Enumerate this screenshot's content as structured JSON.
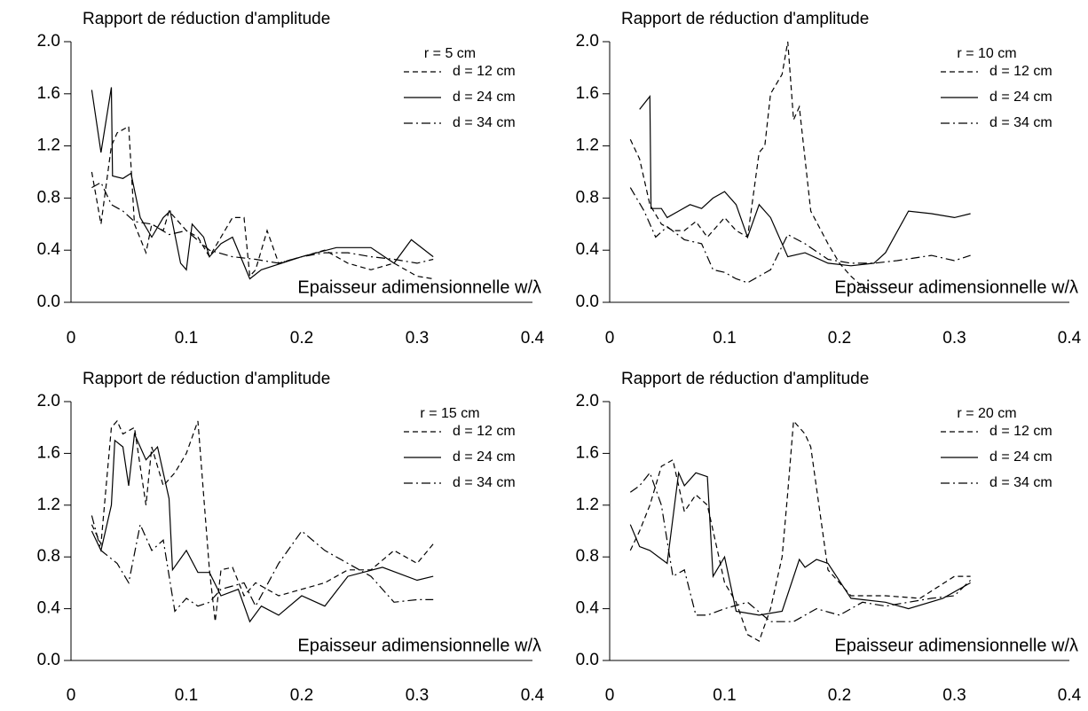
{
  "chart_data": [
    {
      "type": "line",
      "title": "Rapport de réduction d'amplitude",
      "xlabel": "Epaisseur adimensionnelle w/λ",
      "legend_title": "r = 5 cm",
      "xlim": [
        0,
        0.4
      ],
      "xticks": [
        0,
        0.1,
        0.2,
        0.3,
        0.4
      ],
      "ylim": [
        0,
        2
      ],
      "yticks": [
        {
          "value": 0,
          "label": "0.0"
        },
        {
          "value": 0.4,
          "label": "0.4"
        },
        {
          "value": 0.8,
          "label": "0.8"
        },
        {
          "value": 1.2,
          "label": "1.2"
        },
        {
          "value": 1.6,
          "label": "1.6"
        },
        {
          "value": 2,
          "label": "2.0"
        }
      ],
      "series": [
        {
          "name": "d = 12 cm",
          "color": "#000000",
          "dash": "dashed",
          "x": [
            0.018,
            0.026,
            0.035,
            0.04,
            0.05,
            0.055,
            0.065,
            0.07,
            0.08,
            0.085,
            0.09,
            0.1,
            0.11,
            0.12,
            0.13,
            0.14,
            0.15,
            0.155,
            0.16,
            0.17,
            0.18,
            0.2,
            0.22,
            0.24,
            0.26,
            0.28,
            0.3,
            0.314
          ],
          "values": [
            1.0,
            0.6,
            1.2,
            1.3,
            1.35,
            0.6,
            0.38,
            0.6,
            0.55,
            0.7,
            0.65,
            0.55,
            0.5,
            0.35,
            0.5,
            0.65,
            0.65,
            0.2,
            0.25,
            0.55,
            0.3,
            0.35,
            0.4,
            0.3,
            0.25,
            0.3,
            0.2,
            0.18
          ]
        },
        {
          "name": "d = 24 cm",
          "color": "#000000",
          "dash": "solid",
          "x": [
            0.018,
            0.026,
            0.035,
            0.036,
            0.045,
            0.052,
            0.06,
            0.07,
            0.08,
            0.086,
            0.095,
            0.1,
            0.105,
            0.115,
            0.12,
            0.13,
            0.14,
            0.155,
            0.165,
            0.2,
            0.23,
            0.26,
            0.28,
            0.295,
            0.314
          ],
          "values": [
            1.63,
            1.15,
            1.65,
            0.97,
            0.95,
            0.99,
            0.65,
            0.5,
            0.65,
            0.7,
            0.3,
            0.25,
            0.6,
            0.5,
            0.35,
            0.45,
            0.5,
            0.18,
            0.25,
            0.35,
            0.42,
            0.42,
            0.3,
            0.48,
            0.35
          ]
        },
        {
          "name": "d = 34 cm",
          "color": "#000000",
          "dash": "dashdot",
          "x": [
            0.018,
            0.026,
            0.035,
            0.045,
            0.055,
            0.07,
            0.085,
            0.1,
            0.12,
            0.14,
            0.16,
            0.18,
            0.2,
            0.22,
            0.24,
            0.26,
            0.28,
            0.3,
            0.314
          ],
          "values": [
            0.88,
            0.92,
            0.75,
            0.7,
            0.62,
            0.6,
            0.52,
            0.55,
            0.4,
            0.35,
            0.33,
            0.3,
            0.35,
            0.38,
            0.38,
            0.35,
            0.33,
            0.3,
            0.33
          ]
        }
      ]
    },
    {
      "type": "line",
      "title": "Rapport de réduction d'amplitude",
      "xlabel": "Epaisseur adimensionnelle w/λ",
      "legend_title": "r = 10 cm",
      "xlim": [
        0,
        0.4
      ],
      "xticks": [
        0,
        0.1,
        0.2,
        0.3,
        0.4
      ],
      "ylim": [
        0,
        2
      ],
      "yticks": [
        {
          "value": 0,
          "label": "0.0"
        },
        {
          "value": 0.4,
          "label": "0.4"
        },
        {
          "value": 0.8,
          "label": "0.8"
        },
        {
          "value": 1.2,
          "label": "1.2"
        },
        {
          "value": 1.6,
          "label": "1.6"
        },
        {
          "value": 2,
          "label": "2.0"
        }
      ],
      "series": [
        {
          "name": "d = 12 cm",
          "color": "#000000",
          "dash": "dashed",
          "x": [
            0.018,
            0.026,
            0.035,
            0.045,
            0.055,
            0.065,
            0.075,
            0.085,
            0.1,
            0.11,
            0.12,
            0.13,
            0.135,
            0.14,
            0.15,
            0.155,
            0.16,
            0.165,
            0.175,
            0.19,
            0.2,
            0.21,
            0.22,
            0.23
          ],
          "values": [
            1.25,
            1.1,
            0.75,
            0.6,
            0.55,
            0.55,
            0.62,
            0.5,
            0.65,
            0.55,
            0.5,
            1.15,
            1.2,
            1.6,
            1.75,
            2.0,
            1.4,
            1.5,
            0.7,
            0.45,
            0.3,
            0.2,
            0.12,
            0.08
          ]
        },
        {
          "name": "d = 24 cm",
          "color": "#000000",
          "dash": "solid",
          "x": [
            0.026,
            0.035,
            0.036,
            0.045,
            0.05,
            0.06,
            0.07,
            0.08,
            0.09,
            0.1,
            0.11,
            0.12,
            0.13,
            0.14,
            0.155,
            0.17,
            0.19,
            0.21,
            0.23,
            0.24,
            0.26,
            0.28,
            0.3,
            0.314
          ],
          "values": [
            1.48,
            1.58,
            0.72,
            0.72,
            0.65,
            0.7,
            0.75,
            0.72,
            0.8,
            0.85,
            0.75,
            0.5,
            0.75,
            0.65,
            0.35,
            0.38,
            0.3,
            0.28,
            0.3,
            0.38,
            0.7,
            0.68,
            0.65,
            0.68
          ]
        },
        {
          "name": "d = 34 cm",
          "color": "#000000",
          "dash": "dashdot",
          "x": [
            0.018,
            0.03,
            0.04,
            0.05,
            0.065,
            0.08,
            0.09,
            0.1,
            0.11,
            0.12,
            0.14,
            0.155,
            0.17,
            0.19,
            0.21,
            0.23,
            0.25,
            0.28,
            0.3,
            0.314
          ],
          "values": [
            0.88,
            0.7,
            0.5,
            0.58,
            0.48,
            0.45,
            0.25,
            0.23,
            0.18,
            0.15,
            0.25,
            0.52,
            0.45,
            0.33,
            0.3,
            0.3,
            0.32,
            0.36,
            0.32,
            0.36
          ]
        }
      ]
    },
    {
      "type": "line",
      "title": "Rapport de réduction d'amplitude",
      "xlabel": "Epaisseur adimensionnelle w/λ",
      "legend_title": "r = 15 cm",
      "xlim": [
        0,
        0.4
      ],
      "xticks": [
        0,
        0.1,
        0.2,
        0.3,
        0.4
      ],
      "ylim": [
        0,
        2
      ],
      "yticks": [
        {
          "value": 0,
          "label": "0.0"
        },
        {
          "value": 0.4,
          "label": "0.4"
        },
        {
          "value": 0.8,
          "label": "0.8"
        },
        {
          "value": 1.2,
          "label": "1.2"
        },
        {
          "value": 1.6,
          "label": "1.6"
        },
        {
          "value": 2,
          "label": "2.0"
        }
      ],
      "series": [
        {
          "name": "d = 12 cm",
          "color": "#000000",
          "dash": "dashed",
          "x": [
            0.018,
            0.026,
            0.035,
            0.04,
            0.045,
            0.055,
            0.065,
            0.07,
            0.08,
            0.09,
            0.1,
            0.11,
            0.12,
            0.125,
            0.13,
            0.14,
            0.15,
            0.16,
            0.18,
            0.2,
            0.22,
            0.24,
            0.26,
            0.28,
            0.3,
            0.314
          ],
          "values": [
            1.05,
            0.9,
            1.8,
            1.85,
            1.75,
            1.8,
            1.2,
            1.65,
            1.35,
            1.45,
            1.6,
            1.85,
            0.7,
            0.3,
            0.7,
            0.72,
            0.5,
            0.6,
            0.5,
            0.55,
            0.6,
            0.7,
            0.7,
            0.85,
            0.75,
            0.9
          ]
        },
        {
          "name": "d = 24 cm",
          "color": "#000000",
          "dash": "solid",
          "x": [
            0.018,
            0.026,
            0.035,
            0.038,
            0.045,
            0.05,
            0.055,
            0.065,
            0.075,
            0.085,
            0.088,
            0.1,
            0.11,
            0.12,
            0.13,
            0.145,
            0.155,
            0.165,
            0.18,
            0.2,
            0.22,
            0.24,
            0.27,
            0.3,
            0.314
          ],
          "values": [
            1.0,
            0.85,
            1.2,
            1.7,
            1.65,
            1.35,
            1.75,
            1.55,
            1.65,
            1.25,
            0.7,
            0.85,
            0.68,
            0.68,
            0.5,
            0.55,
            0.3,
            0.42,
            0.35,
            0.5,
            0.42,
            0.65,
            0.72,
            0.62,
            0.65
          ]
        },
        {
          "name": "d = 34 cm",
          "color": "#000000",
          "dash": "dashdot",
          "x": [
            0.018,
            0.026,
            0.04,
            0.05,
            0.06,
            0.07,
            0.08,
            0.09,
            0.1,
            0.11,
            0.12,
            0.13,
            0.15,
            0.16,
            0.18,
            0.2,
            0.22,
            0.24,
            0.26,
            0.28,
            0.3,
            0.314
          ],
          "values": [
            1.12,
            0.85,
            0.75,
            0.6,
            1.05,
            0.85,
            0.93,
            0.38,
            0.48,
            0.42,
            0.45,
            0.55,
            0.6,
            0.42,
            0.75,
            1.0,
            0.85,
            0.75,
            0.65,
            0.45,
            0.47,
            0.47
          ]
        }
      ]
    },
    {
      "type": "line",
      "title": "Rapport de réduction d'amplitude",
      "xlabel": "Epaisseur adimensionnelle w/λ",
      "legend_title": "r = 20 cm",
      "xlim": [
        0,
        0.4
      ],
      "xticks": [
        0,
        0.1,
        0.2,
        0.3,
        0.4
      ],
      "ylim": [
        0,
        2
      ],
      "yticks": [
        {
          "value": 0,
          "label": "0.0"
        },
        {
          "value": 0.4,
          "label": "0.4"
        },
        {
          "value": 0.8,
          "label": "0.8"
        },
        {
          "value": 1.2,
          "label": "1.2"
        },
        {
          "value": 1.6,
          "label": "1.6"
        },
        {
          "value": 2,
          "label": "2.0"
        }
      ],
      "series": [
        {
          "name": "d = 12 cm",
          "color": "#000000",
          "dash": "dashed",
          "x": [
            0.018,
            0.026,
            0.035,
            0.045,
            0.055,
            0.065,
            0.075,
            0.085,
            0.1,
            0.11,
            0.12,
            0.13,
            0.14,
            0.15,
            0.155,
            0.16,
            0.17,
            0.175,
            0.19,
            0.21,
            0.24,
            0.27,
            0.3,
            0.314
          ],
          "values": [
            0.85,
            1.0,
            1.2,
            1.5,
            1.55,
            1.15,
            1.28,
            1.2,
            0.6,
            0.45,
            0.2,
            0.15,
            0.4,
            0.8,
            1.3,
            1.85,
            1.75,
            1.65,
            0.7,
            0.5,
            0.5,
            0.48,
            0.65,
            0.65
          ]
        },
        {
          "name": "d = 24 cm",
          "color": "#000000",
          "dash": "solid",
          "x": [
            0.018,
            0.026,
            0.035,
            0.05,
            0.06,
            0.065,
            0.075,
            0.085,
            0.09,
            0.1,
            0.11,
            0.13,
            0.15,
            0.165,
            0.17,
            0.18,
            0.19,
            0.21,
            0.24,
            0.26,
            0.29,
            0.314
          ],
          "values": [
            1.05,
            0.88,
            0.85,
            0.75,
            1.45,
            1.35,
            1.45,
            1.42,
            0.65,
            0.8,
            0.38,
            0.35,
            0.38,
            0.78,
            0.72,
            0.78,
            0.75,
            0.48,
            0.45,
            0.4,
            0.48,
            0.6
          ]
        },
        {
          "name": "d = 34 cm",
          "color": "#000000",
          "dash": "dashdot",
          "x": [
            0.018,
            0.026,
            0.035,
            0.045,
            0.055,
            0.065,
            0.075,
            0.085,
            0.1,
            0.12,
            0.14,
            0.16,
            0.18,
            0.2,
            0.22,
            0.24,
            0.26,
            0.28,
            0.3,
            0.314
          ],
          "values": [
            1.3,
            1.35,
            1.45,
            1.2,
            0.65,
            0.7,
            0.35,
            0.35,
            0.4,
            0.45,
            0.3,
            0.3,
            0.4,
            0.35,
            0.45,
            0.42,
            0.45,
            0.48,
            0.5,
            0.62
          ]
        }
      ]
    }
  ]
}
